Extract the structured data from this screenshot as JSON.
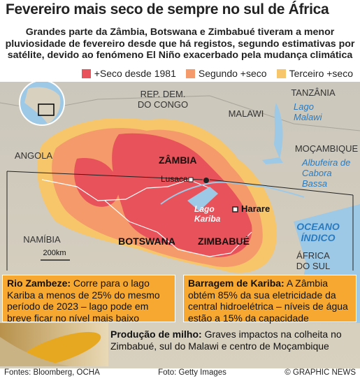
{
  "header": {
    "title": "Fevereiro mais seco de sempre no sul de África",
    "subtitle": "Grandes parte da Zâmbia, Botswana e Zimbabué tiveram a menor pluviosidade de fevereiro desde que há registos, segundo estimativas por satélite, devido ao fenómeno El Niño exacerbado pela mudança climática"
  },
  "legend": [
    {
      "label": "+Seco desde 1981",
      "color": "#e8525a"
    },
    {
      "label": "Segundo +seco",
      "color": "#f59a6a"
    },
    {
      "label": "Terceiro +seco",
      "color": "#f7c56a"
    }
  ],
  "map": {
    "labels": {
      "congo": [
        "REP. DEM.",
        "DO CONGO"
      ],
      "tanzania": [
        "TANZÂNIA"
      ],
      "lake_malawi": [
        "Lago",
        "Malawi"
      ],
      "malawi": [
        "MALAWI"
      ],
      "angola": [
        "ANGOLA"
      ],
      "mozambique": [
        "MOÇAMBIQUE"
      ],
      "cabora_bassa": [
        "Albufeira de",
        "Cabora",
        "Bassa"
      ],
      "zambia": [
        "ZÂMBIA"
      ],
      "lusaka": [
        "Lusaca"
      ],
      "lake_kariba": [
        "Lago",
        "Kariba"
      ],
      "harare": [
        "Harare"
      ],
      "ocean": [
        "OCEANO",
        "ÍNDICO"
      ],
      "namibia": [
        "NAMÍBIA"
      ],
      "botswana": [
        "BOTSWANA"
      ],
      "zimbabwe": [
        "ZIMBABUÉ"
      ],
      "south_africa": [
        "ÁFRICA",
        "DO SUL"
      ],
      "scale": [
        "200km"
      ]
    }
  },
  "boxes": [
    {
      "title": "Rio Zambeze:",
      "text": "Corre para o lago Kariba a menos de 25% do mesmo período de 2023 – lago pode em breve ficar no nível mais baixo"
    },
    {
      "title": "Barragem de Kariba:",
      "text": "A Zâmbia obtém 85% da sua eletricidade da central hidroelétrica – níveis de água estão a 15% da capacidade"
    }
  ],
  "corn": {
    "title": "Produção de milho:",
    "text": "Graves impactos na colheita no Zimbabué, sul do Malawi e centro de Moçambique"
  },
  "footer": {
    "sources": "Fontes: Bloomberg, OCHA",
    "photo": "Foto: Getty Images",
    "credit": "© GRAPHIC NEWS"
  }
}
